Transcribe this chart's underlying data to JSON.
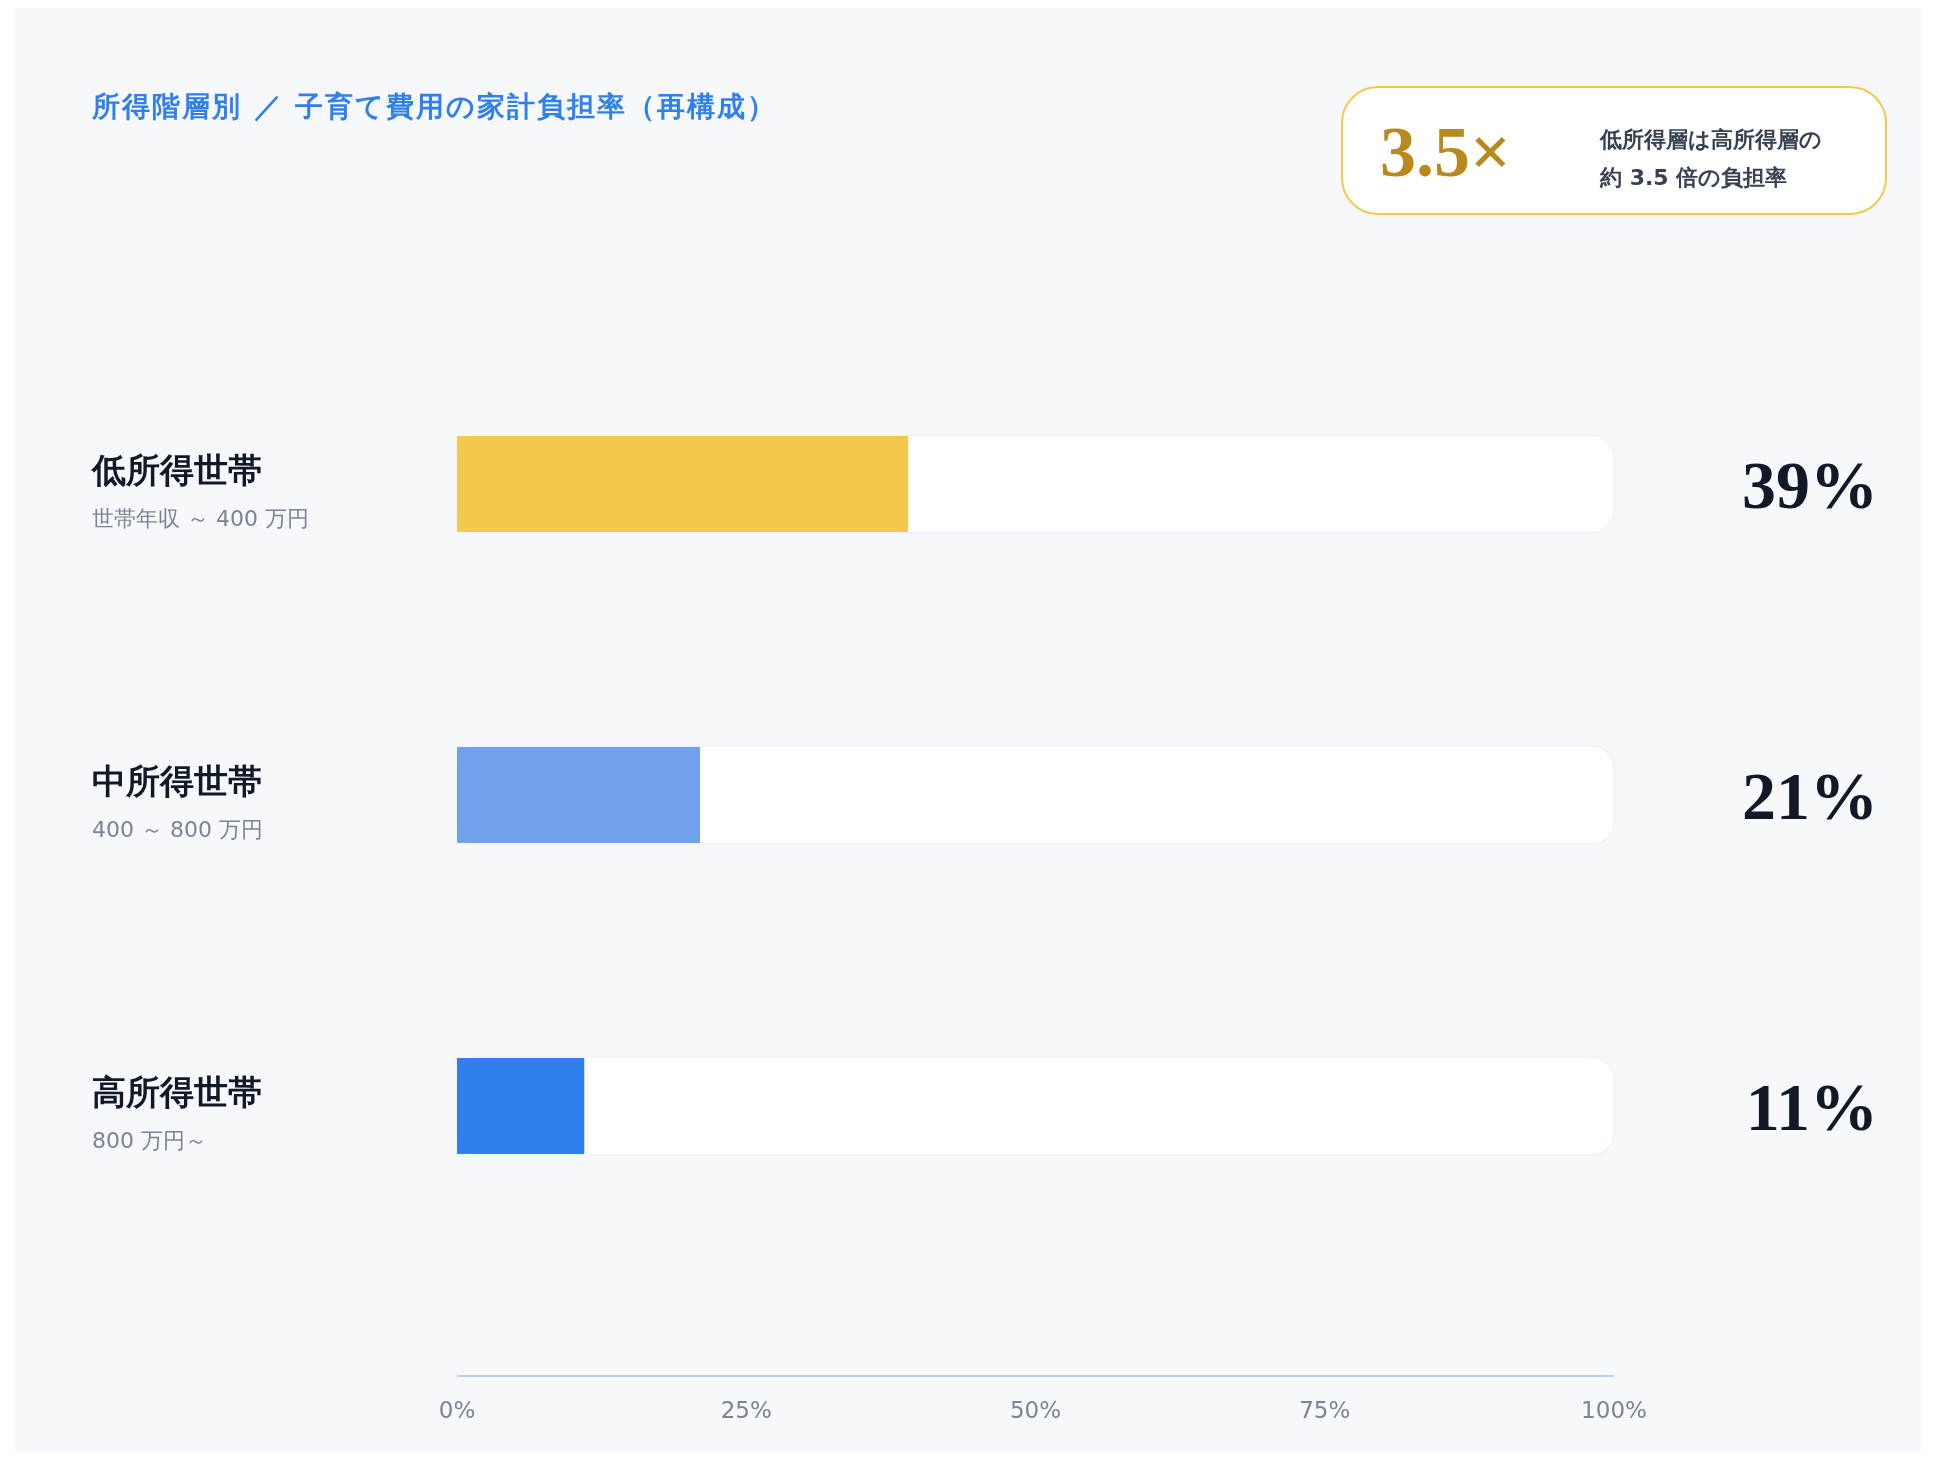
{
  "chart_data": {
    "type": "bar",
    "orientation": "horizontal",
    "title": "所得階層別 ／ 子育て費用の家計負担率（再構成）",
    "categories": [
      "低所得世帯",
      "中所得世帯",
      "高所得世帯"
    ],
    "values": [
      39,
      21,
      11
    ],
    "colors": [
      "#f2c94c",
      "#71a1ec",
      "#2f80ec"
    ],
    "value_labels": [
      "39%",
      "21%",
      "11%"
    ],
    "xlim": [
      0,
      100
    ],
    "xticks": [
      {
        "value": 0,
        "label": "0%"
      },
      {
        "value": 25,
        "label": "25%"
      },
      {
        "value": 50,
        "label": "50%"
      },
      {
        "value": 75,
        "label": "75%"
      },
      {
        "value": 100,
        "label": "100%"
      }
    ],
    "annotations": [
      "世帯年収 ～ 400 万円",
      "400 ～ 800 万円",
      "800 万円～",
      "3.5×",
      "低所得層は高所得層の約 3.5 倍の負担率"
    ]
  }
}
